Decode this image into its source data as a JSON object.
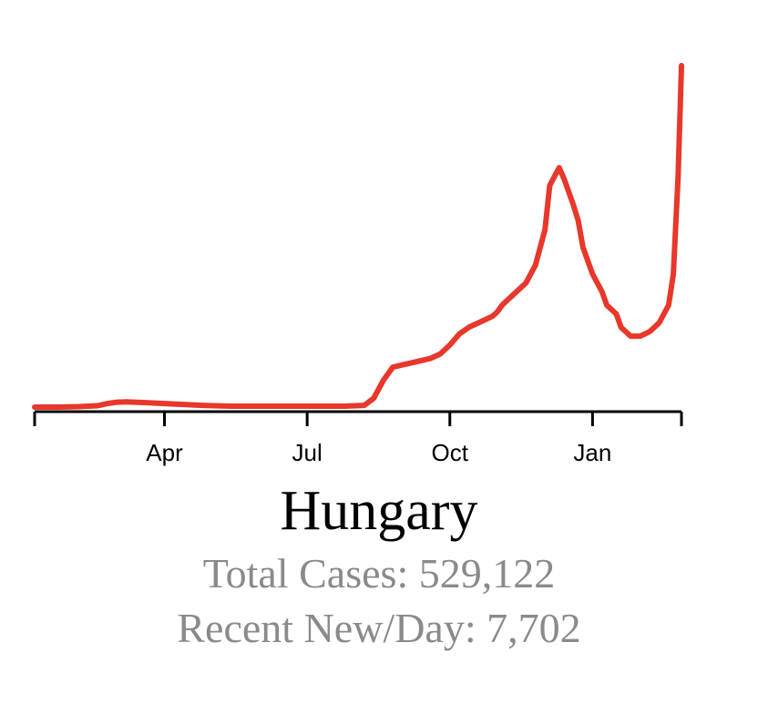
{
  "colors": {
    "line": "#e8372b",
    "axis": "#000000",
    "stats": "#8a8a8a"
  },
  "country": "Hungary",
  "stats": {
    "total_label": "Total Cases:",
    "total_value": "529,122",
    "recent_label": "Recent New/Day:",
    "recent_value": "7,702"
  },
  "chart_data": {
    "type": "line",
    "title": "Hungary",
    "xlabel": "",
    "ylabel": "",
    "x_ticks": [
      "Apr",
      "Jul",
      "Oct",
      "Jan"
    ],
    "x_tick_months": [
      2,
      5,
      8,
      11
    ],
    "xlim": [
      -0.73,
      12.87
    ],
    "ylim": [
      0,
      7702
    ],
    "grid": false,
    "series": [
      {
        "name": "",
        "x": [
          -0.73,
          -0.2,
          0.2,
          0.6,
          0.8,
          1.0,
          1.2,
          1.6,
          2.0,
          2.4,
          2.8,
          3.4,
          4.0,
          4.6,
          5.2,
          5.8,
          6.2,
          6.4,
          6.6,
          6.8,
          7.0,
          7.2,
          7.4,
          7.6,
          7.8,
          8.0,
          8.2,
          8.4,
          8.6,
          8.8,
          8.9,
          9.0,
          9.1,
          9.2,
          9.4,
          9.6,
          9.8,
          10.0,
          10.1,
          10.2,
          10.3,
          10.4,
          10.5,
          10.6,
          10.7,
          10.8,
          11.0,
          11.2,
          11.3,
          11.4,
          11.5,
          11.6,
          11.8,
          12.0,
          12.2,
          12.4,
          12.6,
          12.7,
          12.8,
          12.87
        ],
        "values": [
          0,
          0,
          10,
          30,
          80,
          110,
          120,
          100,
          80,
          60,
          40,
          20,
          20,
          20,
          20,
          20,
          40,
          200,
          600,
          900,
          950,
          1000,
          1050,
          1100,
          1200,
          1400,
          1650,
          1800,
          1900,
          2000,
          2050,
          2150,
          2300,
          2400,
          2600,
          2800,
          3200,
          4000,
          5000,
          5200,
          5400,
          5150,
          4850,
          4550,
          4200,
          3600,
          3000,
          2600,
          2300,
          2200,
          2100,
          1800,
          1600,
          1600,
          1700,
          1900,
          2300,
          3000,
          5200,
          7702
        ]
      }
    ]
  }
}
